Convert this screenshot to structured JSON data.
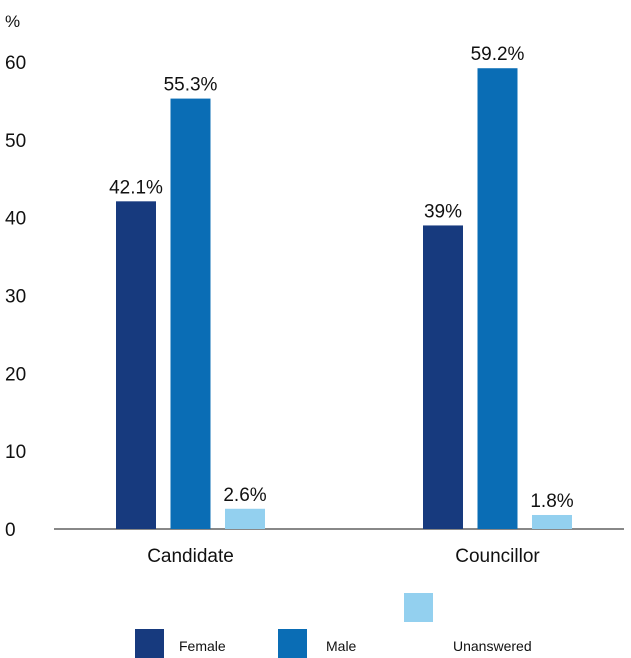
{
  "chart_data": {
    "type": "bar",
    "y_unit": "%",
    "categories": [
      "Candidate",
      "Councillor"
    ],
    "series": [
      {
        "name": "Female",
        "values": [
          42.1,
          39
        ],
        "labels": [
          "42.1%",
          "39%"
        ],
        "color": "#173a7e"
      },
      {
        "name": "Male",
        "values": [
          55.3,
          59.2
        ],
        "labels": [
          "55.3%",
          "59.2%"
        ],
        "color": "#0a6db5"
      },
      {
        "name": "Unanswered",
        "values": [
          2.6,
          1.8
        ],
        "labels": [
          "2.6%",
          "1.8%"
        ],
        "color": "#93d0ef"
      }
    ],
    "ylim": [
      0,
      60
    ],
    "yticks": [
      0,
      10,
      20,
      30,
      40,
      50,
      60
    ],
    "grid": false,
    "legend_position": "bottom"
  }
}
